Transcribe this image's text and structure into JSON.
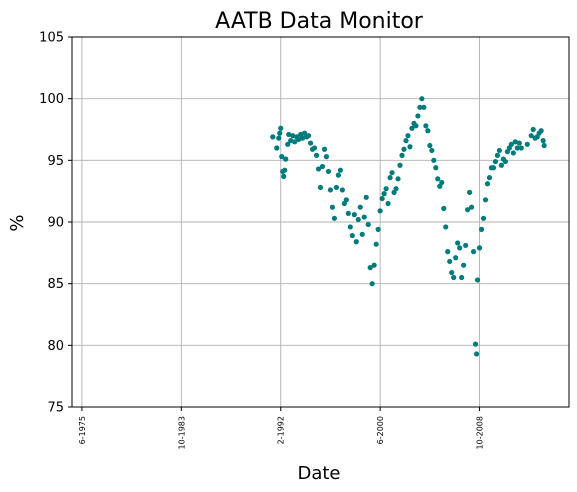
{
  "chart_data": {
    "type": "scatter",
    "title": "AATB Data Monitor",
    "xlabel": "Date",
    "ylabel": "%",
    "ylim": [
      75,
      105
    ],
    "yticks": [
      75,
      80,
      85,
      90,
      95,
      100,
      105
    ],
    "xlim": [
      "1974-08",
      "2016-04"
    ],
    "xticks": [
      {
        "date": "1975-06",
        "label": "6-1975"
      },
      {
        "date": "1983-10",
        "label": "10-1983"
      },
      {
        "date": "1992-02",
        "label": "2-1992"
      },
      {
        "date": "2000-06",
        "label": "6-2000"
      },
      {
        "date": "2008-10",
        "label": "10-2008"
      }
    ],
    "grid": true,
    "marker_color": "#007b7b",
    "series": [
      {
        "points": [
          [
            "1991-06",
            96.9
          ],
          [
            "1991-10",
            96.0
          ],
          [
            "1991-12",
            96.8
          ],
          [
            "1992-01",
            97.2
          ],
          [
            "1992-02",
            97.6
          ],
          [
            "1992-03",
            95.3
          ],
          [
            "1992-04",
            94.1
          ],
          [
            "1992-05",
            93.7
          ],
          [
            "1992-06",
            94.2
          ],
          [
            "1992-07",
            95.1
          ],
          [
            "1992-09",
            96.3
          ],
          [
            "1992-10",
            97.1
          ],
          [
            "1992-12",
            96.6
          ],
          [
            "1993-02",
            97.0
          ],
          [
            "1993-04",
            96.5
          ],
          [
            "1993-06",
            96.9
          ],
          [
            "1993-08",
            96.7
          ],
          [
            "1993-10",
            97.1
          ],
          [
            "1993-12",
            96.8
          ],
          [
            "1994-02",
            97.2
          ],
          [
            "1994-04",
            96.9
          ],
          [
            "1994-06",
            97.0
          ],
          [
            "1994-08",
            96.4
          ],
          [
            "1994-10",
            95.9
          ],
          [
            "1994-12",
            96.0
          ],
          [
            "1995-02",
            95.4
          ],
          [
            "1995-04",
            94.3
          ],
          [
            "1995-06",
            92.8
          ],
          [
            "1995-08",
            94.5
          ],
          [
            "1995-10",
            95.9
          ],
          [
            "1995-12",
            95.3
          ],
          [
            "1996-02",
            94.1
          ],
          [
            "1996-04",
            92.6
          ],
          [
            "1996-06",
            91.2
          ],
          [
            "1996-08",
            90.3
          ],
          [
            "1996-10",
            92.8
          ],
          [
            "1996-12",
            93.8
          ],
          [
            "1997-02",
            94.2
          ],
          [
            "1997-04",
            92.6
          ],
          [
            "1997-06",
            91.5
          ],
          [
            "1997-08",
            91.8
          ],
          [
            "1997-10",
            90.7
          ],
          [
            "1997-12",
            89.6
          ],
          [
            "1998-02",
            88.9
          ],
          [
            "1998-04",
            90.6
          ],
          [
            "1998-06",
            88.4
          ],
          [
            "1998-08",
            90.2
          ],
          [
            "1998-10",
            91.2
          ],
          [
            "1998-12",
            89.0
          ],
          [
            "1999-02",
            90.4
          ],
          [
            "1999-04",
            92.0
          ],
          [
            "1999-06",
            89.8
          ],
          [
            "1999-08",
            86.3
          ],
          [
            "1999-10",
            85.0
          ],
          [
            "1999-12",
            86.5
          ],
          [
            "2000-02",
            88.2
          ],
          [
            "2000-04",
            89.4
          ],
          [
            "2000-06",
            90.9
          ],
          [
            "2000-08",
            91.9
          ],
          [
            "2000-10",
            92.3
          ],
          [
            "2000-12",
            92.7
          ],
          [
            "2001-02",
            91.5
          ],
          [
            "2001-04",
            93.6
          ],
          [
            "2001-06",
            94.0
          ],
          [
            "2001-08",
            92.4
          ],
          [
            "2001-10",
            92.7
          ],
          [
            "2001-12",
            93.5
          ],
          [
            "2002-02",
            94.6
          ],
          [
            "2002-04",
            95.4
          ],
          [
            "2002-06",
            95.9
          ],
          [
            "2002-08",
            96.6
          ],
          [
            "2002-10",
            97.0
          ],
          [
            "2002-12",
            96.1
          ],
          [
            "2003-02",
            97.6
          ],
          [
            "2003-04",
            98.0
          ],
          [
            "2003-06",
            97.8
          ],
          [
            "2003-08",
            98.6
          ],
          [
            "2003-10",
            99.3
          ],
          [
            "2003-12",
            100.0
          ],
          [
            "2004-02",
            99.3
          ],
          [
            "2004-04",
            97.8
          ],
          [
            "2004-06",
            97.4
          ],
          [
            "2004-08",
            96.2
          ],
          [
            "2004-10",
            95.8
          ],
          [
            "2004-12",
            95.0
          ],
          [
            "2005-02",
            94.4
          ],
          [
            "2005-04",
            93.5
          ],
          [
            "2005-06",
            92.9
          ],
          [
            "2005-08",
            93.2
          ],
          [
            "2005-10",
            91.1
          ],
          [
            "2005-12",
            89.6
          ],
          [
            "2006-02",
            87.6
          ],
          [
            "2006-04",
            86.8
          ],
          [
            "2006-06",
            85.9
          ],
          [
            "2006-08",
            85.5
          ],
          [
            "2006-10",
            87.1
          ],
          [
            "2006-12",
            88.3
          ],
          [
            "2007-02",
            87.9
          ],
          [
            "2007-04",
            85.5
          ],
          [
            "2007-06",
            86.5
          ],
          [
            "2007-08",
            88.1
          ],
          [
            "2007-10",
            91.0
          ],
          [
            "2007-12",
            92.4
          ],
          [
            "2008-02",
            91.2
          ],
          [
            "2008-04",
            87.6
          ],
          [
            "2008-06",
            80.1
          ],
          [
            "2008-07",
            79.3
          ],
          [
            "2008-08",
            85.3
          ],
          [
            "2008-10",
            87.9
          ],
          [
            "2008-12",
            89.4
          ],
          [
            "2009-02",
            90.3
          ],
          [
            "2009-04",
            91.8
          ],
          [
            "2009-06",
            93.1
          ],
          [
            "2009-08",
            93.6
          ],
          [
            "2009-10",
            94.4
          ],
          [
            "2009-12",
            94.4
          ],
          [
            "2010-02",
            94.9
          ],
          [
            "2010-04",
            95.4
          ],
          [
            "2010-06",
            95.8
          ],
          [
            "2010-08",
            94.6
          ],
          [
            "2010-10",
            95.1
          ],
          [
            "2010-12",
            94.9
          ],
          [
            "2011-02",
            95.7
          ],
          [
            "2011-04",
            96.0
          ],
          [
            "2011-06",
            96.3
          ],
          [
            "2011-08",
            95.6
          ],
          [
            "2011-10",
            96.5
          ],
          [
            "2011-12",
            96.0
          ],
          [
            "2012-02",
            96.4
          ],
          [
            "2012-04",
            96.0
          ],
          [
            "2012-10",
            96.3
          ],
          [
            "2013-02",
            97.0
          ],
          [
            "2013-04",
            97.5
          ],
          [
            "2013-06",
            96.8
          ],
          [
            "2013-08",
            96.9
          ],
          [
            "2013-10",
            97.2
          ],
          [
            "2013-12",
            97.4
          ],
          [
            "2014-02",
            96.6
          ],
          [
            "2014-03",
            96.2
          ]
        ]
      }
    ]
  }
}
